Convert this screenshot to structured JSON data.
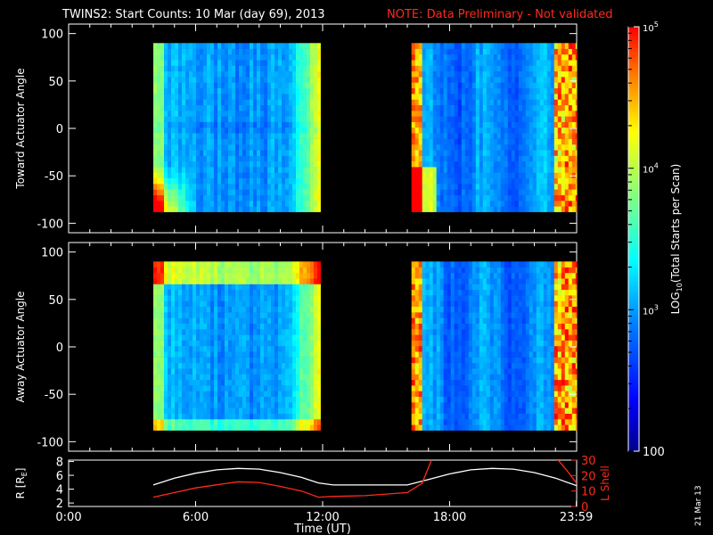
{
  "header": {
    "title": "TWINS2: Start Counts: 10 Mar (day  69), 2013",
    "note": "NOTE: Data Preliminary - Not validated"
  },
  "datestamp": "21 Mar 13",
  "chart_data": [
    {
      "type": "heatmap",
      "ylabel": "Toward Actuator Angle",
      "ylim": [
        -110,
        110
      ],
      "yticks": [
        "-100",
        "-50",
        "0",
        "50",
        "100"
      ],
      "xlim": [
        0,
        24
      ],
      "data_intervals_hours": [
        [
          4.0,
          11.9
        ],
        [
          16.2,
          24.0
        ]
      ],
      "angle_range": [
        -88,
        90
      ]
    },
    {
      "type": "heatmap",
      "ylabel": "Away Actuator Angle",
      "ylim": [
        -110,
        110
      ],
      "yticks": [
        "-100",
        "-50",
        "0",
        "50",
        "100"
      ],
      "xlim": [
        0,
        24
      ],
      "data_intervals_hours": [
        [
          4.0,
          11.9
        ],
        [
          16.2,
          24.0
        ]
      ],
      "angle_range": [
        -88,
        90
      ]
    },
    {
      "type": "line",
      "xlabel": "Time (UT)",
      "xticks": [
        "0:00",
        "6:00",
        "12:00",
        "18:00",
        "23:59"
      ],
      "ylabel_left": "R [R",
      "ylabel_left_sub": "E",
      "ylabel_left_end": "]",
      "yticks_left": [
        "2",
        "4",
        "6",
        "8"
      ],
      "ylim_left": [
        1.5,
        8.2
      ],
      "ylabel_right": "L Shell",
      "yticks_right": [
        "0",
        "10",
        "20",
        "30"
      ],
      "ylim_right": [
        0,
        30
      ],
      "series": [
        {
          "color": "#ffffff",
          "x": [
            4.0,
            5.0,
            6.0,
            7.0,
            8.0,
            9.0,
            10.0,
            11.0,
            11.8,
            12.5,
            14.0,
            16.0,
            17.0,
            18.0,
            19.0,
            20.0,
            21.0,
            22.0,
            23.0,
            24.0
          ],
          "y": [
            4.6,
            5.6,
            6.3,
            6.8,
            7.0,
            6.9,
            6.4,
            5.7,
            4.9,
            4.6,
            4.6,
            4.6,
            5.4,
            6.2,
            6.8,
            7.0,
            6.9,
            6.4,
            5.6,
            4.5
          ]
        },
        {
          "color": "#ff2a1a",
          "axis": "right",
          "x": [
            4.0,
            5.0,
            6.0,
            7.0,
            8.0,
            9.0,
            10.0,
            11.0,
            11.8,
            12.5,
            14.0,
            16.0,
            16.7,
            17.2,
            23.0,
            23.5,
            24.0
          ],
          "y": [
            6,
            9,
            12,
            14,
            16,
            15.5,
            13,
            10,
            6,
            6.5,
            7,
            9,
            15,
            32,
            32,
            24,
            15
          ]
        }
      ]
    },
    {
      "type": "colorbar",
      "label": "LOG",
      "label_sub": "10",
      "label_end": "(Total Starts per Scan)",
      "tick_labels": [
        "100",
        "10",
        "10",
        "10"
      ],
      "tick_exps": [
        "",
        "3",
        "4",
        "5"
      ],
      "range": [
        100,
        100000
      ],
      "colors": [
        "#00008f",
        "#0000ff",
        "#0080ff",
        "#00ffff",
        "#80ff80",
        "#ffff00",
        "#ff8000",
        "#ff0000"
      ]
    }
  ]
}
